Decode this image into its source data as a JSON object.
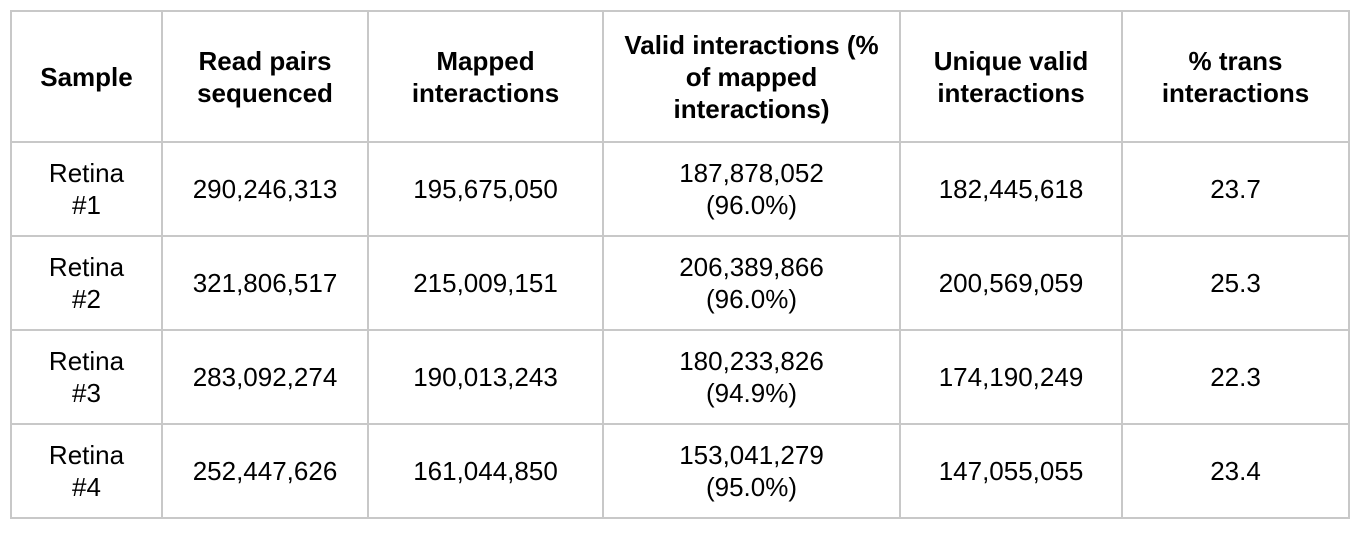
{
  "table": {
    "header": [
      "Sample",
      "Read pairs sequenced",
      "Mapped interactions",
      "Valid interactions (% of mapped interactions)",
      "Unique valid interactions",
      "% trans interactions"
    ],
    "rows": [
      {
        "sample": "Retina #1",
        "read_pairs": "290,246,313",
        "mapped": "195,675,050",
        "valid": {
          "count": "187,878,052",
          "percent": "(96.0%)"
        },
        "unique": "182,445,618",
        "trans": "23.7"
      },
      {
        "sample": "Retina #2",
        "read_pairs": "321,806,517",
        "mapped": "215,009,151",
        "valid": {
          "count": "206,389,866",
          "percent": "(96.0%)"
        },
        "unique": "200,569,059",
        "trans": "25.3"
      },
      {
        "sample": "Retina #3",
        "read_pairs": "283,092,274",
        "mapped": "190,013,243",
        "valid": {
          "count": "180,233,826",
          "percent": "(94.9%)"
        },
        "unique": "174,190,249",
        "trans": "22.3"
      },
      {
        "sample": "Retina #4",
        "read_pairs": "252,447,626",
        "mapped": "161,044,850",
        "valid": {
          "count": "153,041,279",
          "percent": "(95.0%)"
        },
        "unique": "147,055,055",
        "trans": "23.4"
      }
    ]
  }
}
